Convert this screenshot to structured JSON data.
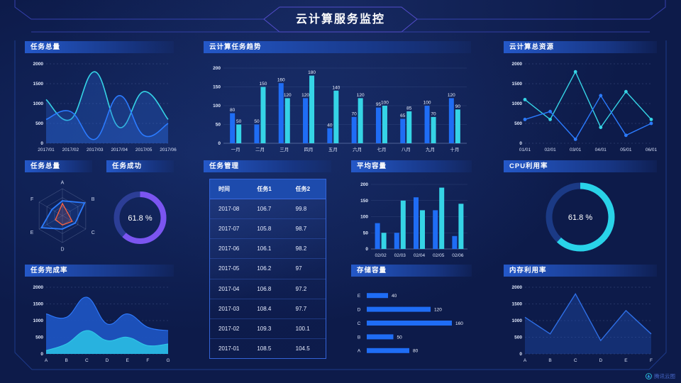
{
  "page": {
    "title": "云计算服务监控",
    "watermark": "腾讯云图"
  },
  "palette": {
    "background": "#0d1b4a",
    "panel_header": "#2458c8",
    "blue": "#1f6df5",
    "cyan": "#35d4e6",
    "purple": "#7b55f0",
    "orange": "#ff6240",
    "frame_line": "#3b45b8"
  },
  "panels": [
    {
      "title": "任务总量"
    },
    {
      "title": "云计算任务趋势"
    },
    {
      "title": "云计算总资源"
    },
    {
      "title": "任务总量"
    },
    {
      "title": "任务成功"
    },
    {
      "title": "任务管理"
    },
    {
      "title": "平均容量"
    },
    {
      "title": "CPU利用率"
    },
    {
      "title": "任务完成率"
    },
    {
      "title": "存储容量"
    },
    {
      "title": "内存利用率"
    }
  ],
  "table": {
    "title": "任务管理",
    "columns": [
      "时间",
      "任务1",
      "任务2"
    ],
    "rows": [
      [
        "2017-08",
        "106.7",
        "99.8"
      ],
      [
        "2017-07",
        "105.8",
        "98.7"
      ],
      [
        "2017-06",
        "106.1",
        "98.2"
      ],
      [
        "2017-05",
        "106.2",
        "97"
      ],
      [
        "2017-04",
        "106.8",
        "97.2"
      ],
      [
        "2017-03",
        "108.4",
        "97.7"
      ],
      [
        "2017-02",
        "109.3",
        "100.1"
      ],
      [
        "2017-01",
        "108.5",
        "104.5"
      ]
    ]
  },
  "chart_data": [
    {
      "id": "task-total-line",
      "type": "line",
      "title": "任务总量",
      "smooth": true,
      "markers": false,
      "grid": "dashed",
      "stroke_w": 1.6,
      "x": [
        "2017/01",
        "2017/02",
        "2017/03",
        "2017/04",
        "2017/05",
        "2017/06"
      ],
      "series": [
        {
          "name": "series1",
          "color": "#35d4e6",
          "fill": "#2a66d8",
          "fill_opacity": 0.3,
          "values": [
            1100,
            600,
            1800,
            400,
            1300,
            600
          ]
        },
        {
          "name": "series2",
          "color": "#2b7bff",
          "fill": "#2a66d8",
          "fill_opacity": 0.3,
          "values": [
            600,
            800,
            100,
            1200,
            200,
            500
          ]
        }
      ],
      "ylim": [
        0,
        2000
      ],
      "yticks": [
        0,
        500,
        1000,
        1500,
        2000
      ]
    },
    {
      "id": "cloud-task-trend",
      "type": "bar",
      "title": "云计算任务趋势",
      "value_labels": true,
      "categories": [
        "一月",
        "二月",
        "三月",
        "四月",
        "五月",
        "六月",
        "七月",
        "八月",
        "九月",
        "十月"
      ],
      "series": [
        {
          "name": "任务1",
          "color": "#1f6df5",
          "values": [
            80,
            50,
            160,
            120,
            40,
            70,
            95,
            65,
            100,
            120
          ]
        },
        {
          "name": "任务2",
          "color": "#35d4e6",
          "values": [
            50,
            150,
            120,
            180,
            140,
            120,
            100,
            85,
            70,
            90
          ]
        }
      ],
      "ylim": [
        0,
        200
      ],
      "yticks": [
        0,
        50,
        100,
        150,
        200
      ]
    },
    {
      "id": "cloud-resource-line",
      "type": "line",
      "title": "云计算总资源",
      "smooth": false,
      "markers": true,
      "grid": "dashed",
      "stroke_w": 1.4,
      "x": [
        "01/01",
        "02/01",
        "03/01",
        "04/01",
        "05/01",
        "06/01"
      ],
      "series": [
        {
          "name": "series1",
          "color": "#35d4e6",
          "values": [
            1100,
            600,
            1800,
            400,
            1300,
            600
          ]
        },
        {
          "name": "series2",
          "color": "#2b7bff",
          "values": [
            600,
            800,
            100,
            1200,
            200,
            500
          ]
        }
      ],
      "ylim": [
        0,
        2000
      ],
      "yticks": [
        0,
        500,
        1000,
        1500,
        2000
      ]
    },
    {
      "id": "task-radar",
      "type": "radar",
      "title": "任务总量",
      "axes": [
        "A",
        "B",
        "C",
        "D",
        "E",
        "F"
      ],
      "max": 100,
      "levels": 3,
      "cx": 53,
      "cy": 56,
      "radius": 38,
      "series": [
        {
          "name": "blue",
          "color": "#2d7dff",
          "values": [
            55,
            95,
            55,
            50,
            90,
            45
          ]
        },
        {
          "name": "orange",
          "color": "#ff6240",
          "values": [
            45,
            22,
            42,
            35,
            30,
            18
          ]
        }
      ]
    },
    {
      "id": "task-success-donut",
      "type": "donut",
      "title": "任务成功",
      "value": 61.8,
      "label": "61.8 %",
      "radius": 33,
      "thickness": 8,
      "label_size": 10.5,
      "progress_color": "#7b55f0",
      "track_color": "#2c3e96"
    },
    {
      "id": "avg-capacity-bar",
      "type": "bar",
      "title": "平均容量",
      "value_labels": false,
      "categories": [
        "02/02",
        "02/03",
        "02/04",
        "02/05",
        "02/06"
      ],
      "series": [
        {
          "name": "series1",
          "color": "#1f6df5",
          "values": [
            80,
            50,
            160,
            120,
            40
          ]
        },
        {
          "name": "series2",
          "color": "#35d4e6",
          "values": [
            50,
            150,
            120,
            190,
            140
          ]
        }
      ],
      "ylim": [
        0,
        200
      ],
      "yticks": [
        0,
        50,
        100,
        150,
        200
      ]
    },
    {
      "id": "cpu-donut",
      "type": "donut",
      "title": "CPU利用率",
      "value": 61.8,
      "label": "61.8 %",
      "radius": 44,
      "thickness": 9,
      "label_size": 12,
      "progress_color": "#29d3e8",
      "track_color": "#1b3a85"
    },
    {
      "id": "task-completion-area",
      "type": "line",
      "title": "任务完成率",
      "smooth": true,
      "markers": false,
      "grid": "dashed",
      "stroke_w": 1.1,
      "x": [
        "A",
        "B",
        "C",
        "D",
        "E",
        "F",
        "G"
      ],
      "series": [
        {
          "name": "upper",
          "color": "#2f7bff",
          "fill": "#1d55c2",
          "fill_opacity": 0.92,
          "values": [
            1200,
            1100,
            1700,
            900,
            1200,
            800,
            700
          ]
        },
        {
          "name": "lower",
          "color": "#2fc8e8",
          "fill": "#29b7e0",
          "fill_opacity": 0.95,
          "values": [
            100,
            300,
            700,
            400,
            500,
            250,
            300
          ]
        }
      ],
      "ylim": [
        0,
        2000
      ],
      "yticks": [
        0,
        500,
        1000,
        1500,
        2000
      ]
    },
    {
      "id": "storage-hbar",
      "type": "hbar",
      "title": "存储容量",
      "categories": [
        "E",
        "D",
        "C",
        "B",
        "A"
      ],
      "values": [
        40,
        120,
        160,
        50,
        80
      ],
      "color": "#1f6df5",
      "max": 160
    },
    {
      "id": "memory-line",
      "type": "line",
      "title": "内存利用率",
      "smooth": false,
      "markers": false,
      "grid": "dashed",
      "stroke_w": 1.4,
      "x": [
        "A",
        "B",
        "C",
        "D",
        "E",
        "F"
      ],
      "series": [
        {
          "name": "memory",
          "color": "#2e6fe6",
          "fill": "#2157c0",
          "fill_opacity": 0.35,
          "values": [
            1100,
            600,
            1800,
            400,
            1300,
            600
          ]
        }
      ],
      "ylim": [
        0,
        2000
      ],
      "yticks": [
        0,
        500,
        1000,
        1500,
        2000
      ]
    }
  ]
}
